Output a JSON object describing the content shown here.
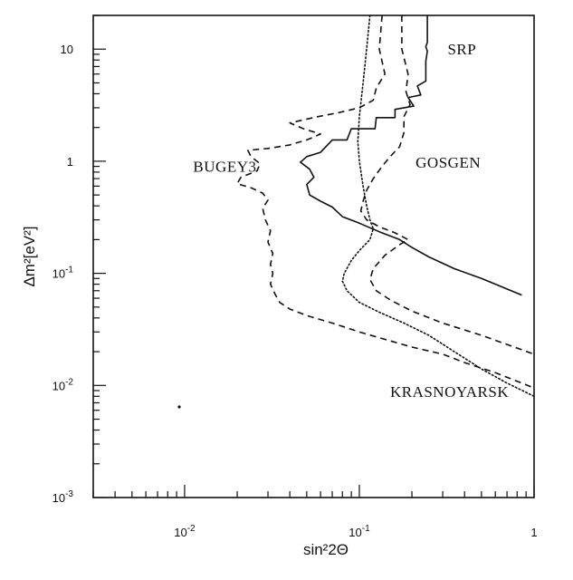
{
  "chart_data": {
    "type": "line",
    "title": "",
    "xlabel": "sin²2Θ",
    "ylabel": "Δm²[eV²]",
    "x_scale": "log",
    "y_scale": "log",
    "xlim": [
      0.003,
      1
    ],
    "ylim": [
      0.001,
      20
    ],
    "x_ticks": [
      {
        "value": 0.01,
        "base": "10",
        "exp": "-2"
      },
      {
        "value": 0.1,
        "base": "10",
        "exp": "-1"
      },
      {
        "value": 1,
        "base": "1",
        "exp": ""
      }
    ],
    "y_ticks": [
      {
        "value": 0.001,
        "base": "10",
        "exp": "-3"
      },
      {
        "value": 0.01,
        "base": "10",
        "exp": "-2"
      },
      {
        "value": 0.1,
        "base": "10",
        "exp": "-1"
      },
      {
        "value": 1,
        "base": "1",
        "exp": ""
      },
      {
        "value": 10,
        "base": "10",
        "exp": ""
      }
    ],
    "annotations": [
      {
        "id": "srp",
        "text": "SRP",
        "x": 0.32,
        "y": 10
      },
      {
        "id": "gosgen",
        "text": "GOSGEN",
        "x": 0.21,
        "y": 0.98
      },
      {
        "id": "bugey3",
        "text": "BUGEY3",
        "x": 0.0112,
        "y": 0.9
      },
      {
        "id": "krasnoyarsk",
        "text": "KRASNOYARSK",
        "x": 0.15,
        "y": 0.0088
      }
    ],
    "series": [
      {
        "label": "SRP",
        "style": "solid",
        "points": [
          [
            0.245,
            20
          ],
          [
            0.245,
            11.5
          ],
          [
            0.24,
            10.5
          ],
          [
            0.245,
            9.6
          ],
          [
            0.24,
            7.8
          ],
          [
            0.24,
            5.2
          ],
          [
            0.215,
            4.7
          ],
          [
            0.225,
            3.9
          ],
          [
            0.19,
            3.7
          ],
          [
            0.205,
            3.1
          ],
          [
            0.16,
            2.9
          ],
          [
            0.16,
            2.45
          ],
          [
            0.125,
            2.45
          ],
          [
            0.123,
            1.95
          ],
          [
            0.09,
            1.95
          ],
          [
            0.085,
            1.55
          ],
          [
            0.07,
            1.55
          ],
          [
            0.06,
            1.2
          ],
          [
            0.05,
            1.1
          ],
          [
            0.046,
            0.98
          ],
          [
            0.052,
            0.85
          ],
          [
            0.055,
            0.72
          ],
          [
            0.05,
            0.62
          ],
          [
            0.052,
            0.5
          ],
          [
            0.06,
            0.44
          ],
          [
            0.07,
            0.39
          ],
          [
            0.08,
            0.32
          ],
          [
            0.1,
            0.28
          ],
          [
            0.13,
            0.235
          ],
          [
            0.17,
            0.2
          ],
          [
            0.2,
            0.17
          ],
          [
            0.25,
            0.14
          ],
          [
            0.35,
            0.11
          ],
          [
            0.5,
            0.09
          ],
          [
            0.85,
            0.064
          ]
        ]
      },
      {
        "label": "GOSGEN",
        "style": "dashed",
        "points": [
          [
            0.175,
            20
          ],
          [
            0.175,
            10
          ],
          [
            0.19,
            6
          ],
          [
            0.185,
            4.2
          ],
          [
            0.195,
            3.2
          ],
          [
            0.18,
            2.5
          ],
          [
            0.18,
            1.8
          ],
          [
            0.17,
            1.35
          ],
          [
            0.15,
            1.1
          ],
          [
            0.135,
            0.9
          ],
          [
            0.12,
            0.7
          ],
          [
            0.11,
            0.55
          ],
          [
            0.105,
            0.44
          ],
          [
            0.102,
            0.36
          ],
          [
            0.11,
            0.3
          ],
          [
            0.13,
            0.26
          ],
          [
            0.16,
            0.23
          ],
          [
            0.19,
            0.2
          ],
          [
            0.17,
            0.18
          ],
          [
            0.14,
            0.145
          ],
          [
            0.12,
            0.11
          ],
          [
            0.115,
            0.088
          ],
          [
            0.125,
            0.07
          ],
          [
            0.15,
            0.058
          ],
          [
            0.2,
            0.046
          ],
          [
            0.3,
            0.036
          ],
          [
            0.5,
            0.028
          ],
          [
            1.0,
            0.019
          ]
        ]
      },
      {
        "label": "BUGEY3",
        "style": "dashed",
        "points": [
          [
            0.135,
            20
          ],
          [
            0.13,
            10
          ],
          [
            0.14,
            6
          ],
          [
            0.125,
            4.5
          ],
          [
            0.12,
            3.5
          ],
          [
            0.1,
            3.0
          ],
          [
            0.075,
            2.7
          ],
          [
            0.058,
            2.5
          ],
          [
            0.04,
            2.2
          ],
          [
            0.048,
            1.95
          ],
          [
            0.06,
            1.75
          ],
          [
            0.05,
            1.55
          ],
          [
            0.04,
            1.4
          ],
          [
            0.03,
            1.3
          ],
          [
            0.023,
            1.25
          ],
          [
            0.024,
            1.1
          ],
          [
            0.027,
            0.95
          ],
          [
            0.026,
            0.82
          ],
          [
            0.021,
            0.72
          ],
          [
            0.02,
            0.63
          ],
          [
            0.024,
            0.58
          ],
          [
            0.028,
            0.52
          ],
          [
            0.03,
            0.45
          ],
          [
            0.028,
            0.38
          ],
          [
            0.029,
            0.3
          ],
          [
            0.031,
            0.24
          ],
          [
            0.03,
            0.19
          ],
          [
            0.032,
            0.15
          ],
          [
            0.031,
            0.12
          ],
          [
            0.032,
            0.1
          ],
          [
            0.031,
            0.08
          ],
          [
            0.033,
            0.065
          ],
          [
            0.035,
            0.055
          ],
          [
            0.04,
            0.048
          ],
          [
            0.05,
            0.042
          ],
          [
            0.07,
            0.036
          ],
          [
            0.1,
            0.03
          ],
          [
            0.15,
            0.025
          ],
          [
            0.2,
            0.022
          ],
          [
            0.3,
            0.019
          ],
          [
            0.4,
            0.016
          ],
          [
            0.6,
            0.013
          ],
          [
            1.0,
            0.0095
          ]
        ]
      },
      {
        "label": "KRASNOYARSK",
        "style": "dotted",
        "points": [
          [
            0.115,
            20
          ],
          [
            0.11,
            10
          ],
          [
            0.105,
            5
          ],
          [
            0.1,
            2.5
          ],
          [
            0.098,
            1.5
          ],
          [
            0.1,
            1.0
          ],
          [
            0.105,
            0.6
          ],
          [
            0.11,
            0.4
          ],
          [
            0.115,
            0.3
          ],
          [
            0.12,
            0.25
          ],
          [
            0.115,
            0.2
          ],
          [
            0.1,
            0.16
          ],
          [
            0.09,
            0.13
          ],
          [
            0.082,
            0.1
          ],
          [
            0.08,
            0.085
          ],
          [
            0.085,
            0.07
          ],
          [
            0.1,
            0.055
          ],
          [
            0.13,
            0.045
          ],
          [
            0.18,
            0.036
          ],
          [
            0.25,
            0.028
          ],
          [
            0.35,
            0.02
          ],
          [
            0.5,
            0.014
          ],
          [
            0.7,
            0.0105
          ],
          [
            1.0,
            0.008
          ]
        ]
      }
    ]
  }
}
